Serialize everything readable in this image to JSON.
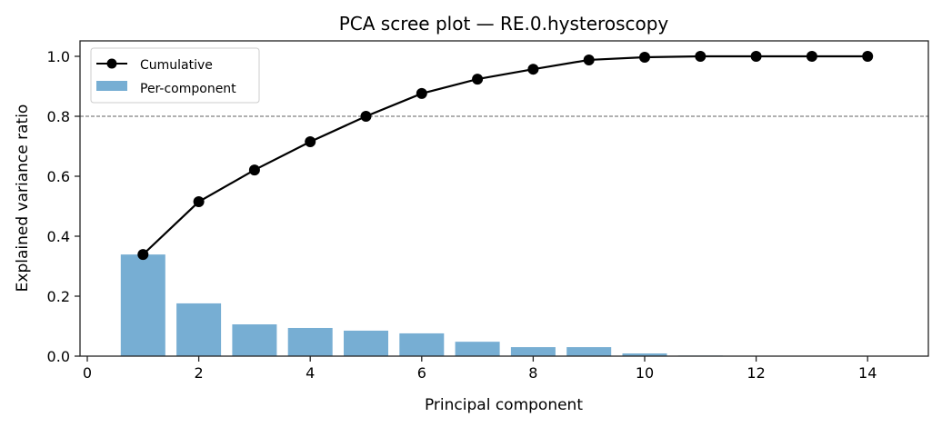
{
  "chart_data": {
    "type": "bar+line",
    "title": "PCA scree plot — RE.0.hysteroscopy",
    "xlabel": "Principal component",
    "ylabel": "Explained variance ratio",
    "xlim": [
      -0.2,
      15.1
    ],
    "ylim": [
      0,
      1.05
    ],
    "xticks": [
      0,
      2,
      4,
      6,
      8,
      10,
      12,
      14
    ],
    "yticks": [
      "0.0",
      "0.2",
      "0.4",
      "0.6",
      "0.8",
      "1.0"
    ],
    "x": [
      1,
      2,
      3,
      4,
      5,
      6,
      7,
      8,
      9,
      10,
      11,
      12,
      13,
      14
    ],
    "series": [
      {
        "name": "Per-component",
        "kind": "bar",
        "color": "#77aed3",
        "values": [
          0.339,
          0.176,
          0.106,
          0.094,
          0.085,
          0.076,
          0.048,
          0.03,
          0.03,
          0.009,
          0.002,
          0.0,
          0.0,
          0.0
        ]
      },
      {
        "name": "Cumulative",
        "kind": "line",
        "color": "#000000",
        "values": [
          0.339,
          0.515,
          0.621,
          0.715,
          0.8,
          0.876,
          0.924,
          0.957,
          0.988,
          0.997,
          1.0,
          1.0,
          1.0,
          1.0
        ]
      }
    ],
    "threshold_line": {
      "y": 0.8,
      "style": "dashed",
      "color": "#808080"
    },
    "legend": "top-left",
    "grid": false
  }
}
